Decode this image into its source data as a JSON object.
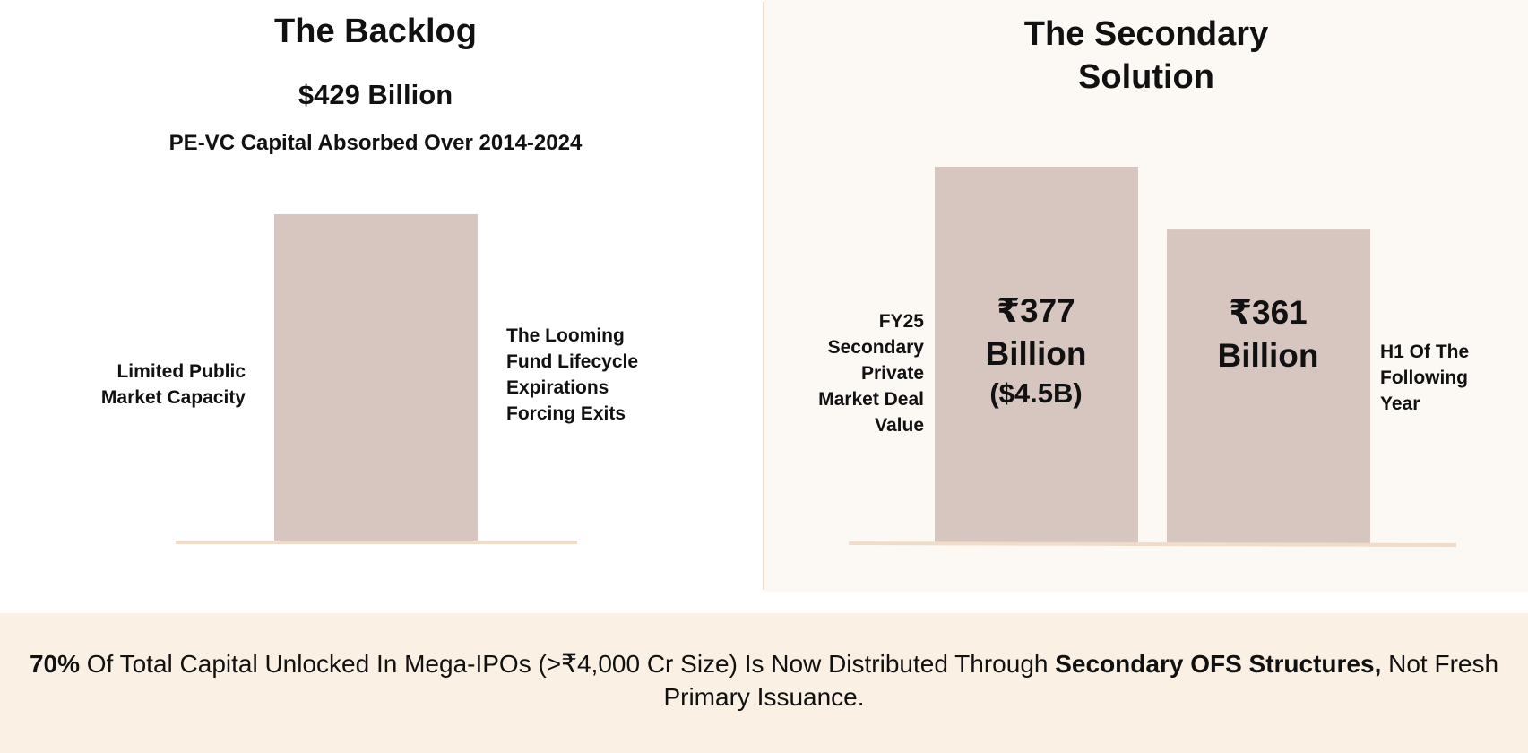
{
  "chart_data": [
    {
      "type": "bar",
      "title": "The Backlog",
      "subtitle": "$429 Billion",
      "caption": "PE-VC Capital Absorbed Over 2014-2024",
      "categories": [
        ""
      ],
      "values": [
        429
      ],
      "annotations": [
        "Limited Public Market Capacity",
        "The Looming Fund Lifecycle Expirations Forcing Exits"
      ],
      "colors": {
        "bar": "#d7c6bf",
        "baseline": "#f0dcc8"
      }
    },
    {
      "type": "bar",
      "title": "The Secondary Solution",
      "categories": [
        "FY25 Secondary Private Market Deal Value",
        "H1 Of The Following Year"
      ],
      "values": [
        377,
        361
      ],
      "data_labels": [
        {
          "line1": "₹377",
          "line2": "Billion",
          "line3": "($4.5B)"
        },
        {
          "line1": "₹361",
          "line2": "Billion",
          "line3": ""
        }
      ],
      "colors": {
        "bar": "#d7c6bf",
        "baseline": "#f0dcc8",
        "panel_bg": "#fcf9f5"
      }
    }
  ],
  "footer": {
    "pct": "70%",
    "part1": " Of Total Capital Unlocked In Mega-IPOs (>₹4,000 Cr Size) Is Now Distributed Through ",
    "bold": "Secondary OFS Structures,",
    "part2": " Not Fresh Primary Issuance."
  }
}
